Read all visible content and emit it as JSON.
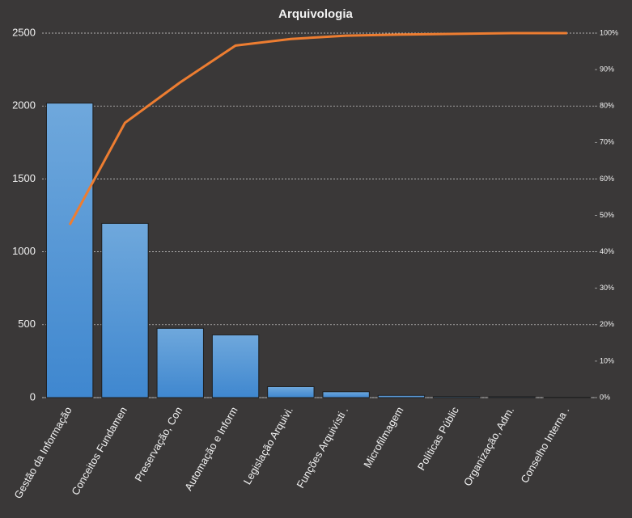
{
  "chart_data": {
    "type": "pareto",
    "title": "Arquivologia",
    "categories": [
      "Gestão da Informação",
      "Conceitos Fundamen",
      "Preservação, Con",
      "Automação e Inform",
      "Legislação Arquivi.",
      "Funções Arquivísti .",
      "Microfilmagem",
      "Políticas Públic",
      "Organização, Adm.",
      "Conselho Interna ."
    ],
    "series": [
      {
        "color": "#5b9bd5",
        "values": [
          2020,
          1195,
          475,
          430,
          75,
          40,
          15,
          7,
          6,
          2
        ]
      },
      {
        "color": "#ed7d31",
        "axis": "y2",
        "values": [
          47.4,
          75.4,
          86.5,
          96.6,
          98.4,
          99.3,
          99.6,
          99.8,
          100,
          100
        ]
      }
    ],
    "ylim": [
      0,
      2500
    ],
    "yticks": [
      0,
      500,
      1000,
      1500,
      2000,
      2500
    ],
    "y2lim": [
      0,
      100
    ],
    "y2ticks": [
      {
        "value": 0,
        "label": "0%"
      },
      {
        "value": 10,
        "label": "10%"
      },
      {
        "value": 20,
        "label": "20%"
      },
      {
        "value": 30,
        "label": "30%"
      },
      {
        "value": 40,
        "label": "40%"
      },
      {
        "value": 50,
        "label": "50%"
      },
      {
        "value": 60,
        "label": "60%"
      },
      {
        "value": 70,
        "label": "70%"
      },
      {
        "value": 80,
        "label": "80%"
      },
      {
        "value": 90,
        "label": "90%"
      },
      {
        "value": 100,
        "label": "100%"
      }
    ],
    "grid": true
  }
}
